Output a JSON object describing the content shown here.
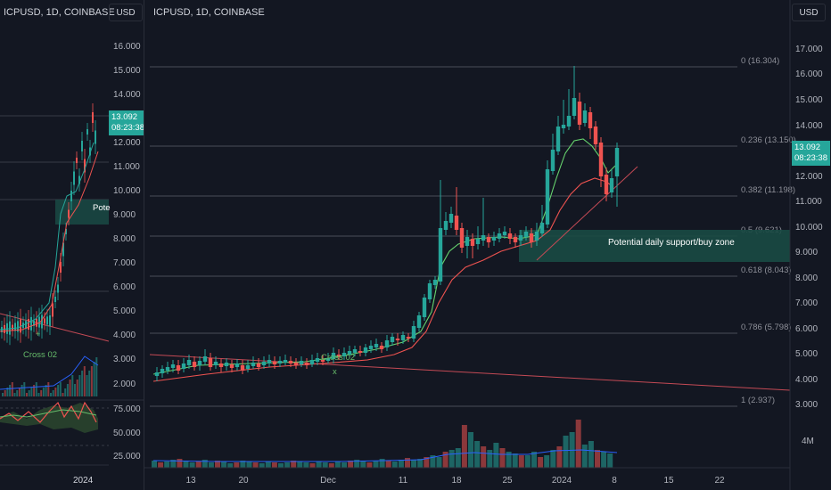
{
  "left_panel": {
    "title": "ICPUSD, 1D, COINBASE",
    "currency": "USD",
    "price_axis": [
      "16.000",
      "15.000",
      "14.000",
      "12.000",
      "11.000",
      "10.000",
      "9.000",
      "8.000",
      "7.000",
      "6.000",
      "5.000",
      "4.000",
      "3.000",
      "2.000"
    ],
    "last_price": "13.092",
    "countdown": "08:23:38",
    "label_potential": "Pote",
    "cross_label": "Cross 02",
    "rsi_axis": [
      "75.000",
      "50.000",
      "25.000"
    ],
    "time_label": "2024"
  },
  "main_chart": {
    "title": "ICPUSD, 1D, COINBASE",
    "currency": "USD",
    "price_axis": [
      "17.000",
      "16.000",
      "15.000",
      "14.000",
      "13.000",
      "12.000",
      "11.000",
      "10.000",
      "9.000",
      "8.000",
      "7.000",
      "6.000",
      "5.000",
      "4.000",
      "3.000"
    ],
    "volume_axis": "4M",
    "last_price": "13.092",
    "countdown": "08:23:38",
    "time_axis": [
      "13",
      "20",
      "Dec",
      "11",
      "18",
      "25",
      "2024",
      "8",
      "15",
      "22"
    ],
    "fib_levels": [
      "0 (16.304)",
      "0.236 (13.150)",
      "0.382 (11.198)",
      "0.5 (9.621)",
      "0.618 (8.043)",
      "0.786 (5.798)",
      "1 (2.937)"
    ],
    "zone_label": "Potential daily support/buy zone",
    "cross_label": "Cross 02",
    "cross_marker": "x"
  },
  "colors": {
    "up": "#26a69a",
    "down": "#ef5350",
    "background": "#131722"
  }
}
